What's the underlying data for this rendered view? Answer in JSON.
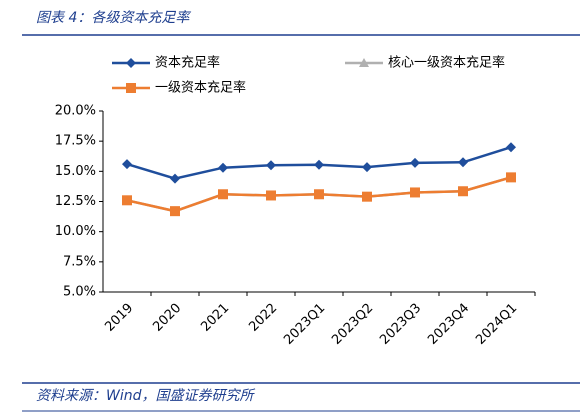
{
  "chart_data": {
    "type": "line",
    "title": "图表 4：各级资本充足率",
    "source": "资料来源：Wind，国盛证券研究所",
    "categories": [
      "2019",
      "2020",
      "2021",
      "2022",
      "2023Q1",
      "2023Q2",
      "2023Q3",
      "2023Q4",
      "2024Q1"
    ],
    "series": [
      {
        "name": "资本充足率",
        "color": "#1f4e9c",
        "marker": "diamond",
        "values": [
          15.6,
          14.4,
          15.3,
          15.5,
          15.55,
          15.35,
          15.7,
          15.75,
          17.0
        ]
      },
      {
        "name": "核心一级资本充足率",
        "color": "#b0b0b0",
        "marker": "triangle",
        "values": [
          12.6,
          11.7,
          13.1,
          13.0,
          13.1,
          12.9,
          13.25,
          13.35,
          14.5
        ]
      },
      {
        "name": "一级资本充足率",
        "color": "#ed7d31",
        "marker": "square",
        "values": [
          12.6,
          11.7,
          13.1,
          13.0,
          13.1,
          12.9,
          13.25,
          13.35,
          14.5
        ]
      }
    ],
    "ylim": [
      5,
      20
    ],
    "yticks": [
      {
        "value": 5,
        "label": "5.0%"
      },
      {
        "value": 7.5,
        "label": "7.5%"
      },
      {
        "value": 10,
        "label": "10.0%"
      },
      {
        "value": 12.5,
        "label": "12.5%"
      },
      {
        "value": 15,
        "label": "15.0%"
      },
      {
        "value": 17.5,
        "label": "17.5%"
      },
      {
        "value": 20,
        "label": "20.0%"
      }
    ]
  }
}
